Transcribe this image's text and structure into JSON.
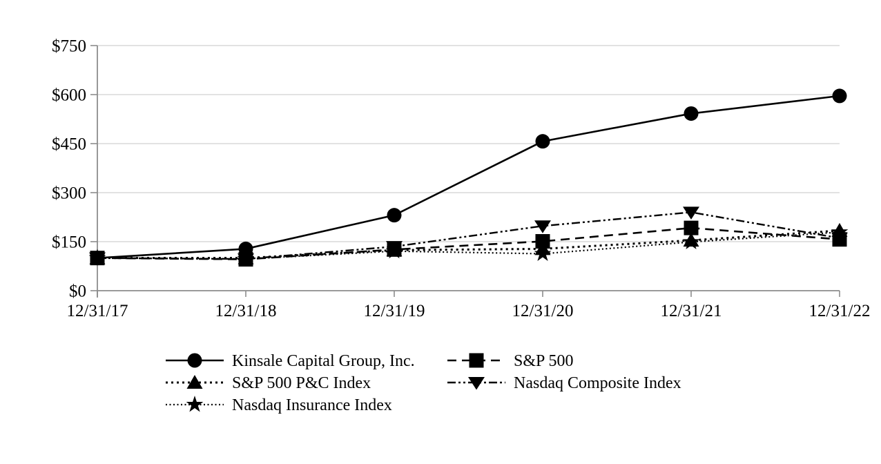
{
  "chart_data": {
    "type": "line",
    "title": "",
    "xlabel": "",
    "ylabel": "",
    "x_categories": [
      "12/31/17",
      "12/31/18",
      "12/31/19",
      "12/31/20",
      "12/31/21",
      "12/31/22"
    ],
    "y_tick_labels": [
      "$0",
      "$150",
      "$300",
      "$450",
      "$600",
      "$750"
    ],
    "y_tick_values": [
      0,
      150,
      300,
      450,
      600,
      750
    ],
    "ylim": [
      0,
      750
    ],
    "grid": "horizontal-light-gray",
    "legend_position": "bottom",
    "series": [
      {
        "name": "Kinsale Capital Group, Inc.",
        "marker": "circle",
        "line_style": "solid",
        "values": [
          100,
          128,
          231,
          457,
          542,
          596
        ]
      },
      {
        "name": "S&P 500",
        "marker": "square",
        "line_style": "dashed",
        "values": [
          100,
          96,
          126,
          151,
          192,
          157
        ]
      },
      {
        "name": "S&P 500 P&C Index",
        "marker": "triangle-up",
        "line_style": "dotted",
        "values": [
          100,
          100,
          124,
          128,
          154,
          184
        ]
      },
      {
        "name": "Nasdaq Composite Index",
        "marker": "triangle-down",
        "line_style": "dash-dot-dot",
        "values": [
          100,
          97,
          135,
          198,
          240,
          161
        ]
      },
      {
        "name": "Nasdaq Insurance Index",
        "marker": "star",
        "line_style": "fine-dotted",
        "values": [
          100,
          97,
          121,
          113,
          149,
          179
        ]
      }
    ],
    "colors": {
      "series": "#000000",
      "axis": "#8c8c8c",
      "gridline": "#d9d9d9",
      "background": "#ffffff",
      "text": "#000000"
    }
  }
}
